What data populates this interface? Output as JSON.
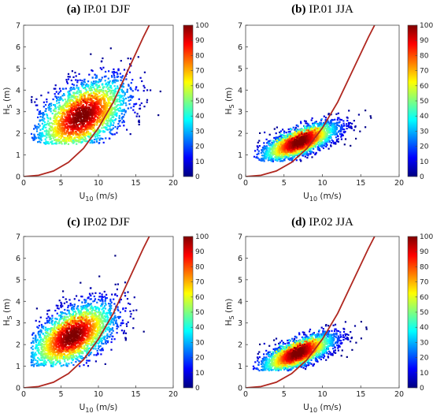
{
  "chart_data": [
    {
      "type": "scatter",
      "title": "(a) IP.01 DJF",
      "title_bold": "(a)",
      "title_rest": "IP.01 DJF",
      "xlabel": "U10 (m/s)",
      "ylabel": "HS (m)",
      "xlim": [
        0,
        20
      ],
      "ylim": [
        0,
        7
      ],
      "xticks": [
        "0",
        "5",
        "10",
        "15",
        "20"
      ],
      "yticks": [
        "0",
        "1",
        "2",
        "3",
        "4",
        "5",
        "6",
        "7"
      ],
      "colorbar": {
        "min": 0,
        "max": 100,
        "ticks": [
          "0",
          "10",
          "20",
          "30",
          "40",
          "50",
          "60",
          "70",
          "80",
          "90",
          "100"
        ]
      },
      "density": {
        "center_x": 7.8,
        "center_y": 2.7,
        "sx": 3.2,
        "sy": 0.9,
        "rho": 0.5,
        "x_range": [
          1,
          19
        ],
        "y_range": [
          1.5,
          7
        ]
      },
      "fit_curve": {
        "points": [
          [
            0,
            0
          ],
          [
            2,
            0.06
          ],
          [
            4,
            0.26
          ],
          [
            6,
            0.66
          ],
          [
            8,
            1.3
          ],
          [
            10,
            2.25
          ],
          [
            12,
            3.45
          ],
          [
            14,
            4.95
          ],
          [
            16,
            6.45
          ],
          [
            16.8,
            7.0
          ]
        ]
      }
    },
    {
      "type": "scatter",
      "title": "(b) IP.01 JJA",
      "title_bold": "(b)",
      "title_rest": "IP.01 JJA",
      "xlabel": "U10 (m/s)",
      "ylabel": "HS (m)",
      "xlim": [
        0,
        20
      ],
      "ylim": [
        0,
        7
      ],
      "xticks": [
        "0",
        "5",
        "10",
        "15",
        "20"
      ],
      "yticks": [
        "0",
        "1",
        "2",
        "3",
        "4",
        "5",
        "6",
        "7"
      ],
      "colorbar": {
        "min": 0,
        "max": 100,
        "ticks": [
          "0",
          "10",
          "20",
          "30",
          "40",
          "50",
          "60",
          "70",
          "80",
          "90",
          "100"
        ]
      },
      "density": {
        "center_x": 7.0,
        "center_y": 1.5,
        "sx": 2.6,
        "sy": 0.45,
        "rho": 0.72,
        "x_range": [
          1,
          16.5
        ],
        "y_range": [
          0.7,
          5
        ]
      },
      "fit_curve": {
        "points": [
          [
            0,
            0
          ],
          [
            2,
            0.06
          ],
          [
            4,
            0.26
          ],
          [
            6,
            0.66
          ],
          [
            8,
            1.3
          ],
          [
            10,
            2.25
          ],
          [
            12,
            3.45
          ],
          [
            14,
            4.95
          ],
          [
            16,
            6.45
          ],
          [
            16.8,
            7.0
          ]
        ]
      }
    },
    {
      "type": "scatter",
      "title": "(c) IP.02 DJF",
      "title_bold": "(c)",
      "title_rest": "IP.02 DJF",
      "xlabel": "U10 (m/s)",
      "ylabel": "HS (m)",
      "xlim": [
        0,
        20
      ],
      "ylim": [
        0,
        7
      ],
      "xticks": [
        "0",
        "5",
        "10",
        "15",
        "20"
      ],
      "yticks": [
        "0",
        "1",
        "2",
        "3",
        "4",
        "5",
        "6",
        "7"
      ],
      "colorbar": {
        "min": 0,
        "max": 100,
        "ticks": [
          "0",
          "10",
          "20",
          "30",
          "40",
          "50",
          "60",
          "70",
          "80",
          "90",
          "100"
        ]
      },
      "density": {
        "center_x": 6.5,
        "center_y": 2.3,
        "sx": 3.0,
        "sy": 0.8,
        "rho": 0.55,
        "x_range": [
          1,
          19
        ],
        "y_range": [
          1.0,
          7
        ]
      },
      "fit_curve": {
        "points": [
          [
            0,
            0
          ],
          [
            2,
            0.06
          ],
          [
            4,
            0.26
          ],
          [
            6,
            0.66
          ],
          [
            8,
            1.3
          ],
          [
            10,
            2.25
          ],
          [
            12,
            3.45
          ],
          [
            14,
            4.95
          ],
          [
            16,
            6.45
          ],
          [
            16.8,
            7.0
          ]
        ]
      }
    },
    {
      "type": "scatter",
      "title": "(d) IP.02 JJA",
      "title_bold": "(d)",
      "title_rest": "IP.02 JJA",
      "xlabel": "U10 (m/s)",
      "ylabel": "HS (m)",
      "xlim": [
        0,
        20
      ],
      "ylim": [
        0,
        7
      ],
      "xticks": [
        "0",
        "5",
        "10",
        "15",
        "20"
      ],
      "yticks": [
        "0",
        "1",
        "2",
        "3",
        "4",
        "5",
        "6",
        "7"
      ],
      "colorbar": {
        "min": 0,
        "max": 100,
        "ticks": [
          "0",
          "10",
          "20",
          "30",
          "40",
          "50",
          "60",
          "70",
          "80",
          "90",
          "100"
        ]
      },
      "density": {
        "center_x": 6.8,
        "center_y": 1.5,
        "sx": 2.5,
        "sy": 0.45,
        "rho": 0.72,
        "x_range": [
          1,
          16.5
        ],
        "y_range": [
          0.8,
          5
        ]
      },
      "fit_curve": {
        "points": [
          [
            0,
            0
          ],
          [
            2,
            0.06
          ],
          [
            4,
            0.26
          ],
          [
            6,
            0.66
          ],
          [
            8,
            1.3
          ],
          [
            10,
            2.25
          ],
          [
            12,
            3.45
          ],
          [
            14,
            4.95
          ],
          [
            16,
            6.45
          ],
          [
            16.8,
            7.0
          ]
        ]
      }
    }
  ],
  "colors": {
    "fit_curve": "#b0271f",
    "jet": [
      "#00007f",
      "#0000ff",
      "#007fff",
      "#00ffff",
      "#7fff7f",
      "#ffff00",
      "#ff7f00",
      "#ff0000",
      "#7f0000"
    ]
  }
}
